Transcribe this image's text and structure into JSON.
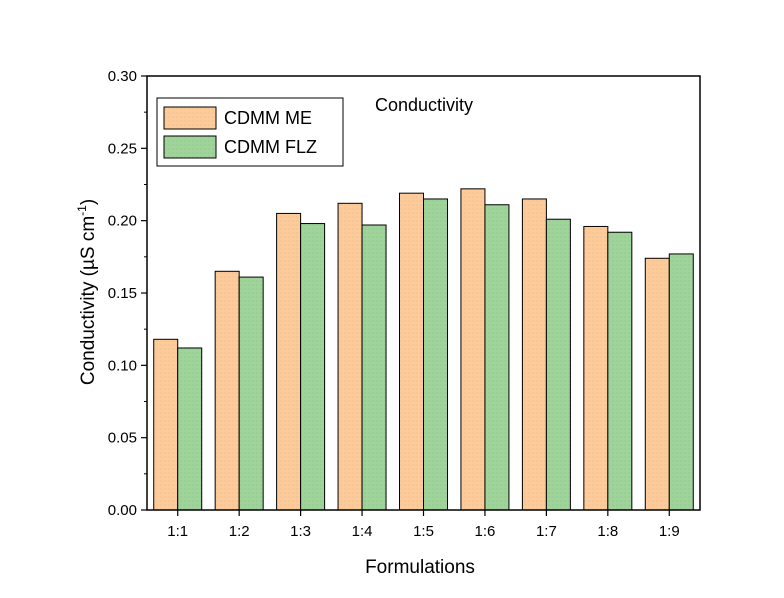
{
  "chart_data": {
    "type": "bar",
    "title": "",
    "annotation": "Conductivity",
    "xlabel": "Formulations",
    "ylabel_main": "Conductivity (µS cm",
    "ylabel_sup": "-1",
    "ylabel_tail": ")",
    "categories": [
      "1:1",
      "1:2",
      "1:3",
      "1:4",
      "1:5",
      "1:6",
      "1:7",
      "1:8",
      "1:9"
    ],
    "series": [
      {
        "name": "CDMM ME",
        "color": "#FDCB9A",
        "values": [
          0.118,
          0.165,
          0.205,
          0.212,
          0.219,
          0.222,
          0.215,
          0.196,
          0.174
        ]
      },
      {
        "name": "CDMM FLZ",
        "color": "#9ED39A",
        "values": [
          0.112,
          0.161,
          0.198,
          0.197,
          0.215,
          0.211,
          0.201,
          0.192,
          0.177
        ]
      }
    ],
    "ylim": [
      0,
      0.3
    ],
    "yticks": [
      "0.00",
      "0.05",
      "0.10",
      "0.15",
      "0.20",
      "0.25",
      "0.30"
    ],
    "grid": false,
    "legend_position": "top-left"
  }
}
